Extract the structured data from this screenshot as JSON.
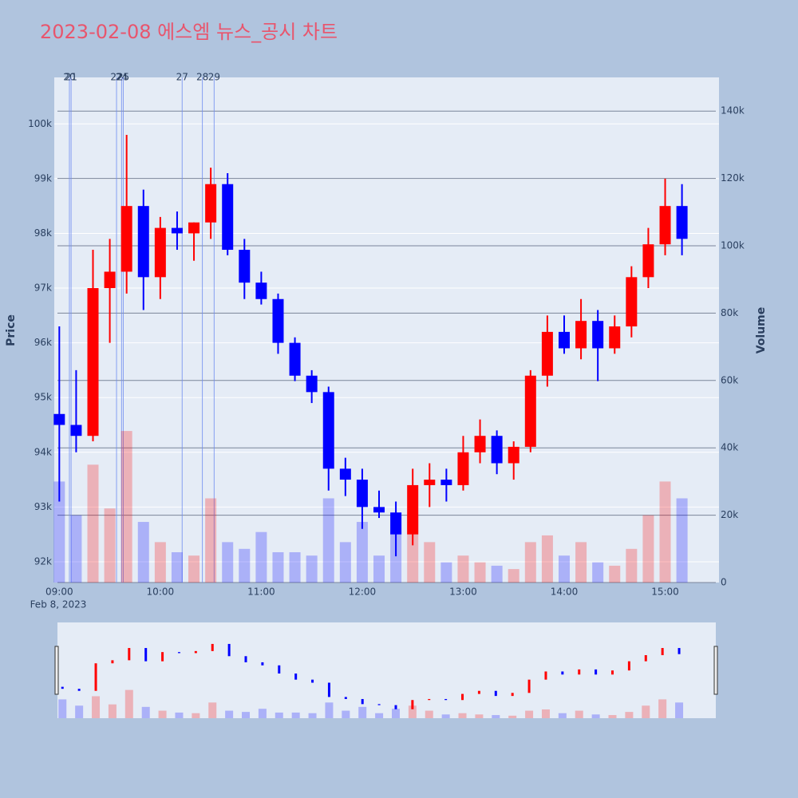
{
  "chart_data": {
    "type": "candlestick",
    "title": "2023-02-08 에스엠 뉴스_공시 차트",
    "y_label": "Price",
    "y2_label": "Volume",
    "x_sublabel": "Feb 8, 2023",
    "x": [
      "09:00",
      "09:10",
      "09:20",
      "09:30",
      "09:40",
      "09:50",
      "10:00",
      "10:10",
      "10:20",
      "10:30",
      "10:40",
      "10:50",
      "11:00",
      "11:10",
      "11:20",
      "11:30",
      "11:40",
      "11:50",
      "12:00",
      "12:10",
      "12:20",
      "12:30",
      "12:40",
      "12:50",
      "13:00",
      "13:10",
      "13:20",
      "13:30",
      "13:40",
      "13:50",
      "14:00",
      "14:10",
      "14:20",
      "14:30",
      "14:40",
      "14:50",
      "15:00",
      "15:10"
    ],
    "open": [
      94700,
      94500,
      94300,
      97000,
      97300,
      98500,
      97200,
      98100,
      98000,
      98200,
      98900,
      97700,
      97100,
      96800,
      96000,
      95400,
      95100,
      93700,
      93500,
      93000,
      92900,
      92500,
      93400,
      93500,
      93400,
      94000,
      94300,
      93800,
      94100,
      95400,
      96200,
      95900,
      96400,
      95900,
      96300,
      97200,
      97800,
      98500
    ],
    "high": [
      96300,
      95500,
      97700,
      97900,
      99800,
      98800,
      98300,
      98400,
      98200,
      99200,
      99100,
      97900,
      97300,
      96900,
      96100,
      95500,
      95200,
      93900,
      93700,
      93300,
      93100,
      93700,
      93800,
      93700,
      94300,
      94600,
      94400,
      94200,
      95500,
      96500,
      96500,
      96800,
      96600,
      96500,
      97400,
      98100,
      99000,
      98900
    ],
    "low": [
      93100,
      94000,
      94200,
      96000,
      96900,
      96600,
      96800,
      97700,
      97500,
      97900,
      97600,
      96800,
      96700,
      95800,
      95300,
      94900,
      93300,
      93200,
      92600,
      92800,
      92100,
      92300,
      93000,
      93100,
      93300,
      93800,
      93600,
      93500,
      94000,
      95200,
      95800,
      95700,
      95300,
      95800,
      96100,
      97000,
      97600,
      97600
    ],
    "close": [
      94500,
      94300,
      97000,
      97300,
      98500,
      97200,
      98100,
      98000,
      98200,
      98900,
      97700,
      97100,
      96800,
      96000,
      95400,
      95100,
      93700,
      93500,
      93000,
      92900,
      92500,
      93400,
      93500,
      93400,
      94000,
      94300,
      93800,
      94100,
      95400,
      96200,
      95900,
      96400,
      95900,
      96300,
      97200,
      97800,
      98500,
      97900
    ],
    "volume": [
      30000,
      20000,
      35000,
      22000,
      45000,
      18000,
      12000,
      9000,
      8000,
      25000,
      12000,
      10000,
      15000,
      9000,
      9000,
      8000,
      25000,
      12000,
      18000,
      8000,
      15000,
      20000,
      12000,
      6000,
      8000,
      6000,
      5000,
      4000,
      12000,
      14000,
      8000,
      12000,
      6000,
      5000,
      10000,
      20000,
      30000,
      25000
    ],
    "increasing_color": "#ff0000",
    "decreasing_color": "#0000ff",
    "xlim": [
      "08:57",
      "15:32"
    ],
    "xticks": [
      "09:00",
      "10:00",
      "11:00",
      "12:00",
      "13:00",
      "14:00",
      "15:00"
    ],
    "ylim": [
      91620,
      100850
    ],
    "yticks": [
      {
        "value": 92000,
        "label": "92k"
      },
      {
        "value": 93000,
        "label": "93k"
      },
      {
        "value": 94000,
        "label": "94k"
      },
      {
        "value": 95000,
        "label": "95k"
      },
      {
        "value": 96000,
        "label": "96k"
      },
      {
        "value": 97000,
        "label": "97k"
      },
      {
        "value": 98000,
        "label": "98k"
      },
      {
        "value": 99000,
        "label": "99k"
      },
      {
        "value": 100000,
        "label": "100k"
      }
    ],
    "y2lim": [
      0,
      150000
    ],
    "y2ticks": [
      0,
      {
        "value": 20000,
        "label": "20k"
      },
      {
        "value": 40000,
        "label": "40k"
      },
      {
        "value": 60000,
        "label": "60k"
      },
      {
        "value": 80000,
        "label": "80k"
      },
      {
        "value": 100000,
        "label": "100k"
      },
      {
        "value": 120000,
        "label": "120k"
      },
      {
        "value": 140000,
        "label": "140k"
      }
    ],
    "annotations": [
      {
        "x": "09:06",
        "text": "20"
      },
      {
        "x": "09:07",
        "text": "21"
      },
      {
        "x": "09:34",
        "text": "22"
      },
      {
        "x": "09:37",
        "text": "24"
      },
      {
        "x": "09:38",
        "text": "25"
      },
      {
        "x": "10:13",
        "text": "27"
      },
      {
        "x": "10:25",
        "text": "28"
      },
      {
        "x": "10:32",
        "text": "29"
      }
    ]
  }
}
